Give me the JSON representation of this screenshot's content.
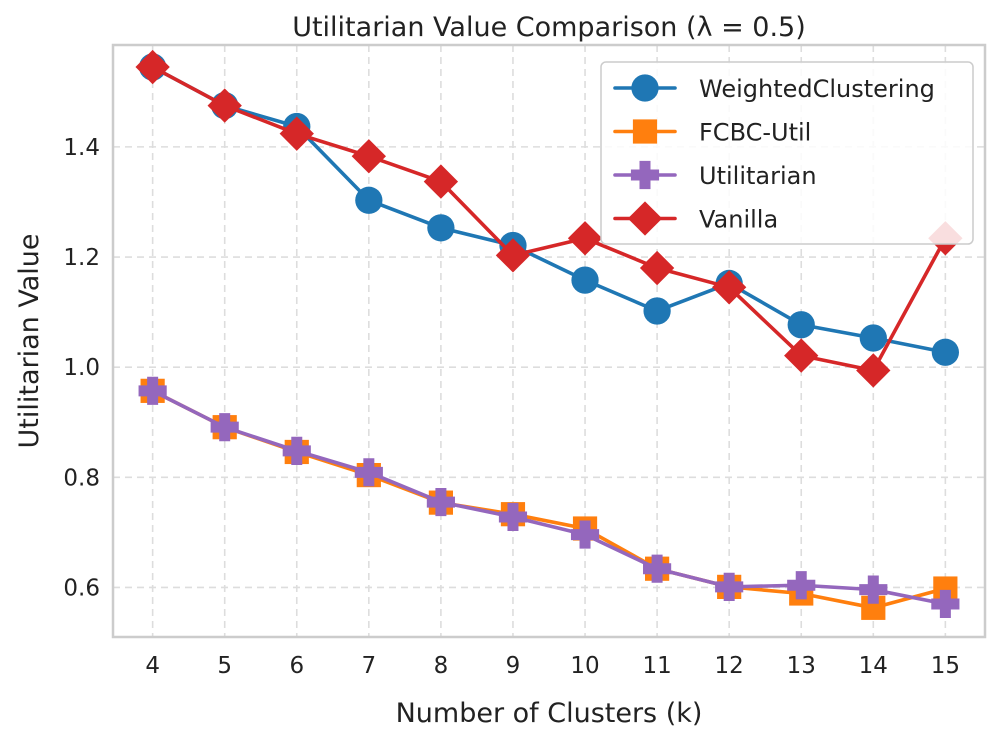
{
  "chart_data": {
    "type": "line",
    "title": "Utilitarian Value Comparison (λ = 0.5)",
    "xlabel": "Number of Clusters (k)",
    "ylabel": "Utilitarian Value",
    "x": [
      4,
      5,
      6,
      7,
      8,
      9,
      10,
      11,
      12,
      13,
      14,
      15
    ],
    "x_tick_labels": [
      "4",
      "5",
      "6",
      "7",
      "8",
      "9",
      "10",
      "11",
      "12",
      "13",
      "14",
      "15"
    ],
    "xlim": [
      3.45,
      15.55
    ],
    "ylim": [
      0.51,
      1.585
    ],
    "y_ticks": [
      0.6,
      0.8,
      1.0,
      1.2,
      1.4
    ],
    "y_tick_labels": [
      "0.6",
      "0.8",
      "1.0",
      "1.2",
      "1.4"
    ],
    "grid": true,
    "legend_position": "top-right",
    "series": [
      {
        "name": "WeightedClustering",
        "color": "#1f77b4",
        "marker": "circle",
        "values": [
          1.545,
          1.475,
          1.437,
          1.303,
          1.253,
          1.221,
          1.158,
          1.102,
          1.152,
          1.077,
          1.053,
          1.027
        ]
      },
      {
        "name": "FCBC-Util",
        "color": "#ff7f0e",
        "marker": "square",
        "values": [
          0.957,
          0.891,
          0.846,
          0.804,
          0.754,
          0.733,
          0.707,
          0.634,
          0.601,
          0.589,
          0.563,
          0.598
        ]
      },
      {
        "name": "Utilitarian",
        "color": "#9467bd",
        "marker": "plus",
        "values": [
          0.957,
          0.891,
          0.848,
          0.809,
          0.755,
          0.728,
          0.696,
          0.634,
          0.601,
          0.604,
          0.596,
          0.57
        ]
      },
      {
        "name": "Vanilla",
        "color": "#d62728",
        "marker": "diamond",
        "values": [
          1.545,
          1.475,
          1.424,
          1.383,
          1.337,
          1.203,
          1.234,
          1.18,
          1.145,
          1.021,
          0.994,
          1.234
        ]
      }
    ]
  }
}
